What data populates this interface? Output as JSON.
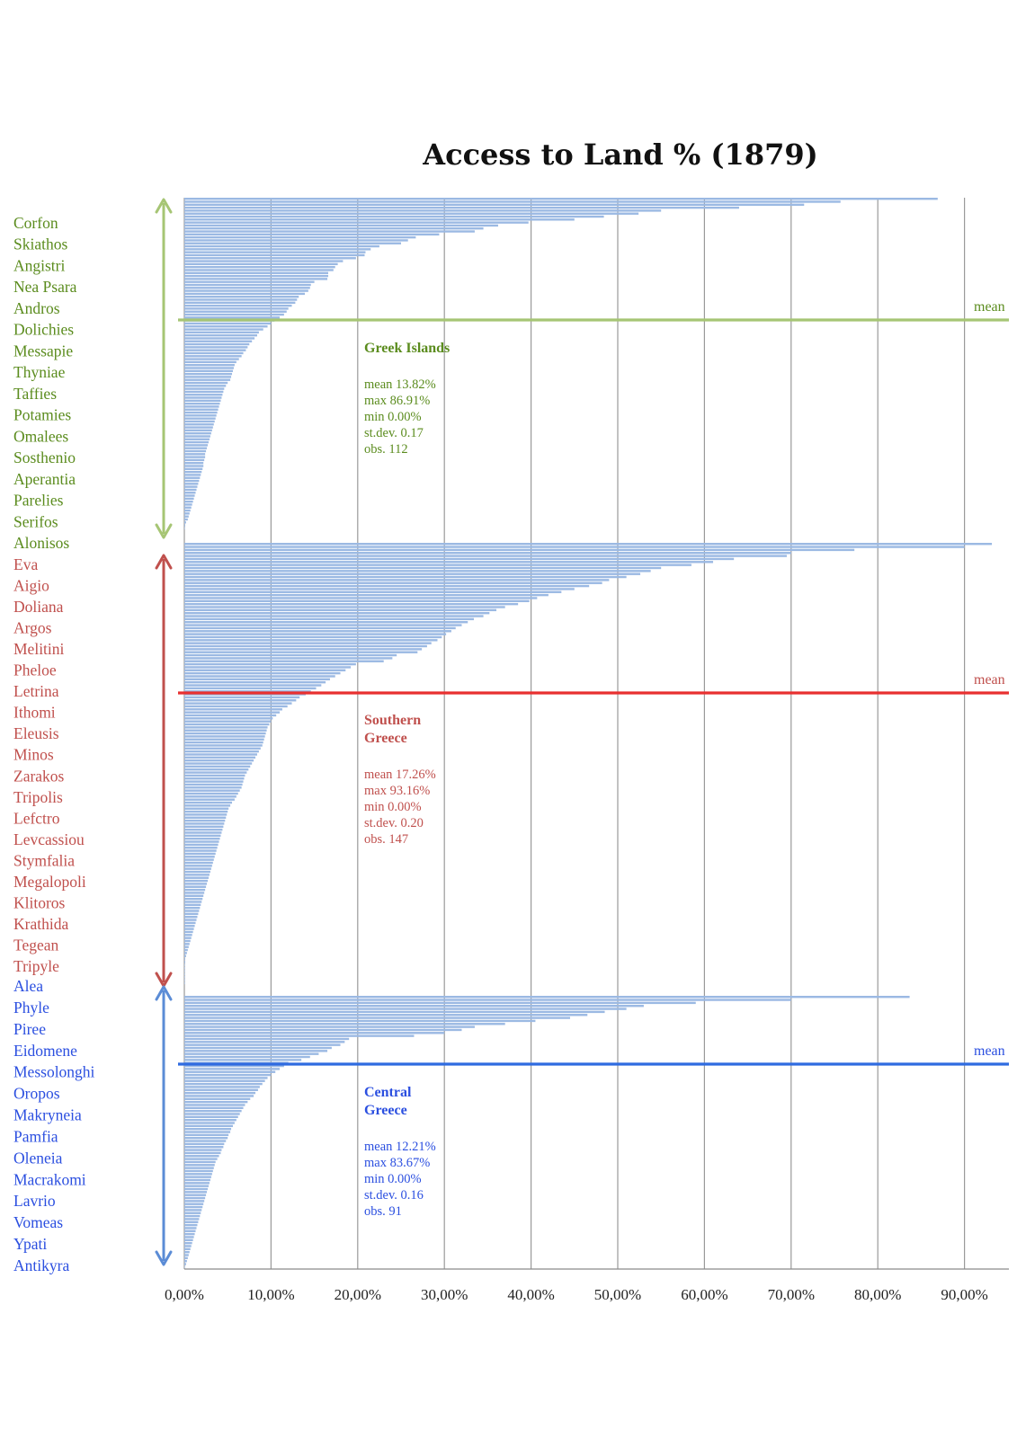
{
  "title": "Access to Land % (1879)",
  "chart_data": {
    "type": "bar",
    "orientation": "horizontal",
    "title": "Access to Land % (1879)",
    "xlabel": "",
    "ylabel": "",
    "xlim": [
      0,
      95
    ],
    "x_ticks": [
      "0,00%",
      "10,00%",
      "20,00%",
      "30,00%",
      "40,00%",
      "50,00%",
      "60,00%",
      "70,00%",
      "80,00%",
      "90,00%"
    ],
    "grid": "vertical",
    "bar_color": "#9bb9e3",
    "sorted": "descending within group",
    "groups": [
      {
        "name": "Greek Islands",
        "color": "#5b8c1e",
        "line_color": "#a6c574",
        "arrow_color": "#a6c574",
        "mean_label": "mean",
        "stats": [
          "mean 13.82%",
          "max 86.91%",
          "min 0.00%",
          "st.dev. 0.17",
          "obs. 112"
        ],
        "stats_values": {
          "mean": 13.82,
          "max": 86.91,
          "min": 0.0,
          "stdev": 0.17,
          "obs": 112
        },
        "labels": [
          "Corfon",
          "Skiathos",
          "Angistri",
          "Nea Psara",
          "Andros",
          "Dolichies",
          "Messapie",
          "Thyniae",
          "Taffies",
          "Potamies",
          "Omalees",
          "Sosthenio",
          "Aperantia",
          "Parelies",
          "Serifos",
          "Alonisos"
        ],
        "values": [
          86.91,
          75.7,
          71.5,
          64.0,
          55.0,
          52.4,
          48.4,
          45.0,
          39.7,
          36.2,
          34.5,
          33.5,
          29.4,
          26.7,
          25.8,
          25.0,
          22.5,
          21.5,
          20.9,
          20.8,
          19.8,
          18.3,
          17.7,
          17.4,
          17.2,
          16.6,
          16.6,
          16.5,
          15.0,
          14.6,
          14.5,
          14.3,
          13.9,
          13.2,
          13.0,
          12.8,
          12.4,
          12.0,
          11.8,
          11.5,
          11.0,
          10.4,
          10.0,
          9.6,
          9.1,
          8.6,
          8.4,
          8.1,
          7.8,
          7.5,
          7.3,
          7.1,
          6.8,
          6.6,
          6.3,
          6.0,
          5.8,
          5.7,
          5.6,
          5.5,
          5.4,
          5.3,
          5.0,
          4.8,
          4.6,
          4.5,
          4.4,
          4.3,
          4.2,
          4.1,
          4.0,
          3.9,
          3.8,
          3.7,
          3.6,
          3.5,
          3.4,
          3.3,
          3.2,
          3.1,
          3.0,
          2.9,
          2.8,
          2.7,
          2.6,
          2.5,
          2.4,
          2.4,
          2.3,
          2.2,
          2.2,
          2.1,
          2.0,
          1.9,
          1.8,
          1.7,
          1.6,
          1.5,
          1.4,
          1.3,
          1.2,
          1.1,
          1.0,
          0.9,
          0.8,
          0.7,
          0.6,
          0.5,
          0.4,
          0.2,
          0.1,
          0.0
        ]
      },
      {
        "name": "Southern Greece",
        "color": "#c0504d",
        "line_color": "#e83030",
        "arrow_color": "#c0504d",
        "mean_label": "mean",
        "stats": [
          "mean 17.26%",
          "max 93.16%",
          "min 0.00%",
          "st.dev. 0.20",
          "obs. 147"
        ],
        "stats_values": {
          "mean": 17.26,
          "max": 93.16,
          "min": 0.0,
          "stdev": 0.2,
          "obs": 147
        },
        "labels": [
          "Eva",
          "Aigio",
          "Doliana",
          "Argos",
          "Melitini",
          "Pheloe",
          "Letrina",
          "Ithomi",
          "Eleusis",
          "Minos",
          "Zarakos",
          "Tripolis",
          "Lefctro",
          "Levcassiou",
          "Stymfalia",
          "Megalopoli",
          "Klitoros",
          "Krathida",
          "Tegean",
          "Tripyle"
        ],
        "values": [
          93.16,
          90.0,
          77.3,
          70.0,
          69.5,
          63.4,
          61.0,
          58.5,
          55.0,
          53.8,
          52.6,
          51.0,
          49.0,
          48.2,
          46.7,
          45.0,
          43.5,
          42.0,
          40.7,
          39.8,
          38.5,
          37.0,
          36.0,
          35.2,
          34.5,
          33.4,
          32.7,
          32.0,
          31.3,
          30.8,
          30.2,
          29.7,
          29.2,
          28.5,
          28.0,
          27.4,
          26.9,
          24.5,
          24.0,
          23.0,
          19.8,
          19.2,
          18.6,
          18.0,
          17.4,
          16.8,
          16.3,
          15.8,
          15.2,
          14.6,
          14.0,
          13.3,
          12.9,
          12.4,
          11.9,
          11.3,
          11.0,
          10.6,
          10.2,
          10.0,
          9.8,
          9.6,
          9.5,
          9.4,
          9.3,
          9.2,
          9.1,
          9.0,
          8.8,
          8.6,
          8.4,
          8.2,
          8.0,
          7.8,
          7.6,
          7.4,
          7.2,
          7.0,
          6.9,
          6.8,
          6.7,
          6.6,
          6.4,
          6.2,
          6.0,
          5.8,
          5.5,
          5.3,
          5.1,
          5.0,
          4.9,
          4.8,
          4.7,
          4.6,
          4.5,
          4.4,
          4.3,
          4.2,
          4.1,
          4.0,
          3.9,
          3.8,
          3.7,
          3.6,
          3.5,
          3.4,
          3.3,
          3.2,
          3.1,
          3.0,
          2.9,
          2.8,
          2.7,
          2.6,
          2.5,
          2.4,
          2.3,
          2.2,
          2.1,
          2.0,
          1.9,
          1.8,
          1.7,
          1.6,
          1.5,
          1.4,
          1.3,
          1.2,
          1.1,
          1.0,
          0.9,
          0.8,
          0.7,
          0.6,
          0.5,
          0.4,
          0.3,
          0.2,
          0.1,
          0.1,
          0.0,
          0.0,
          0.0,
          0.0,
          0.0,
          0.0,
          0.0
        ]
      },
      {
        "name": "Central Greece",
        "color": "#2b4fe0",
        "line_color": "#2f6be0",
        "arrow_color": "#5b8cd6",
        "mean_label": "mean",
        "stats": [
          "mean 12.21%",
          "max 83.67%",
          "min 0.00%",
          "st.dev. 0.16",
          "obs. 91"
        ],
        "stats_values": {
          "mean": 12.21,
          "max": 83.67,
          "min": 0.0,
          "stdev": 0.16,
          "obs": 91
        },
        "labels": [
          "Alea",
          "Phyle",
          "Piree",
          "Eidomene",
          "Messolonghi",
          "Oropos",
          "Makryneia",
          "Pamfia",
          "Oleneia",
          "Macrakomi",
          "Lavrio",
          "Vomeas",
          "Ypati",
          "Antikyra"
        ],
        "values": [
          83.67,
          70.0,
          59.0,
          53.0,
          51.0,
          48.5,
          46.5,
          44.5,
          40.5,
          37.0,
          33.5,
          32.0,
          30.0,
          26.5,
          19.0,
          18.5,
          18.0,
          17.0,
          16.5,
          15.5,
          14.5,
          13.5,
          12.0,
          11.5,
          11.0,
          10.5,
          10.0,
          9.6,
          9.3,
          9.0,
          8.7,
          8.5,
          8.2,
          8.0,
          7.6,
          7.3,
          7.0,
          6.8,
          6.6,
          6.4,
          6.2,
          6.0,
          5.8,
          5.6,
          5.4,
          5.3,
          5.1,
          5.0,
          4.8,
          4.6,
          4.5,
          4.3,
          4.2,
          4.0,
          3.8,
          3.6,
          3.5,
          3.4,
          3.3,
          3.2,
          3.1,
          3.0,
          2.9,
          2.8,
          2.7,
          2.6,
          2.5,
          2.4,
          2.3,
          2.2,
          2.1,
          2.0,
          1.9,
          1.8,
          1.7,
          1.6,
          1.5,
          1.4,
          1.3,
          1.2,
          1.1,
          1.0,
          0.9,
          0.8,
          0.7,
          0.6,
          0.5,
          0.4,
          0.3,
          0.2,
          0.0
        ]
      }
    ]
  }
}
